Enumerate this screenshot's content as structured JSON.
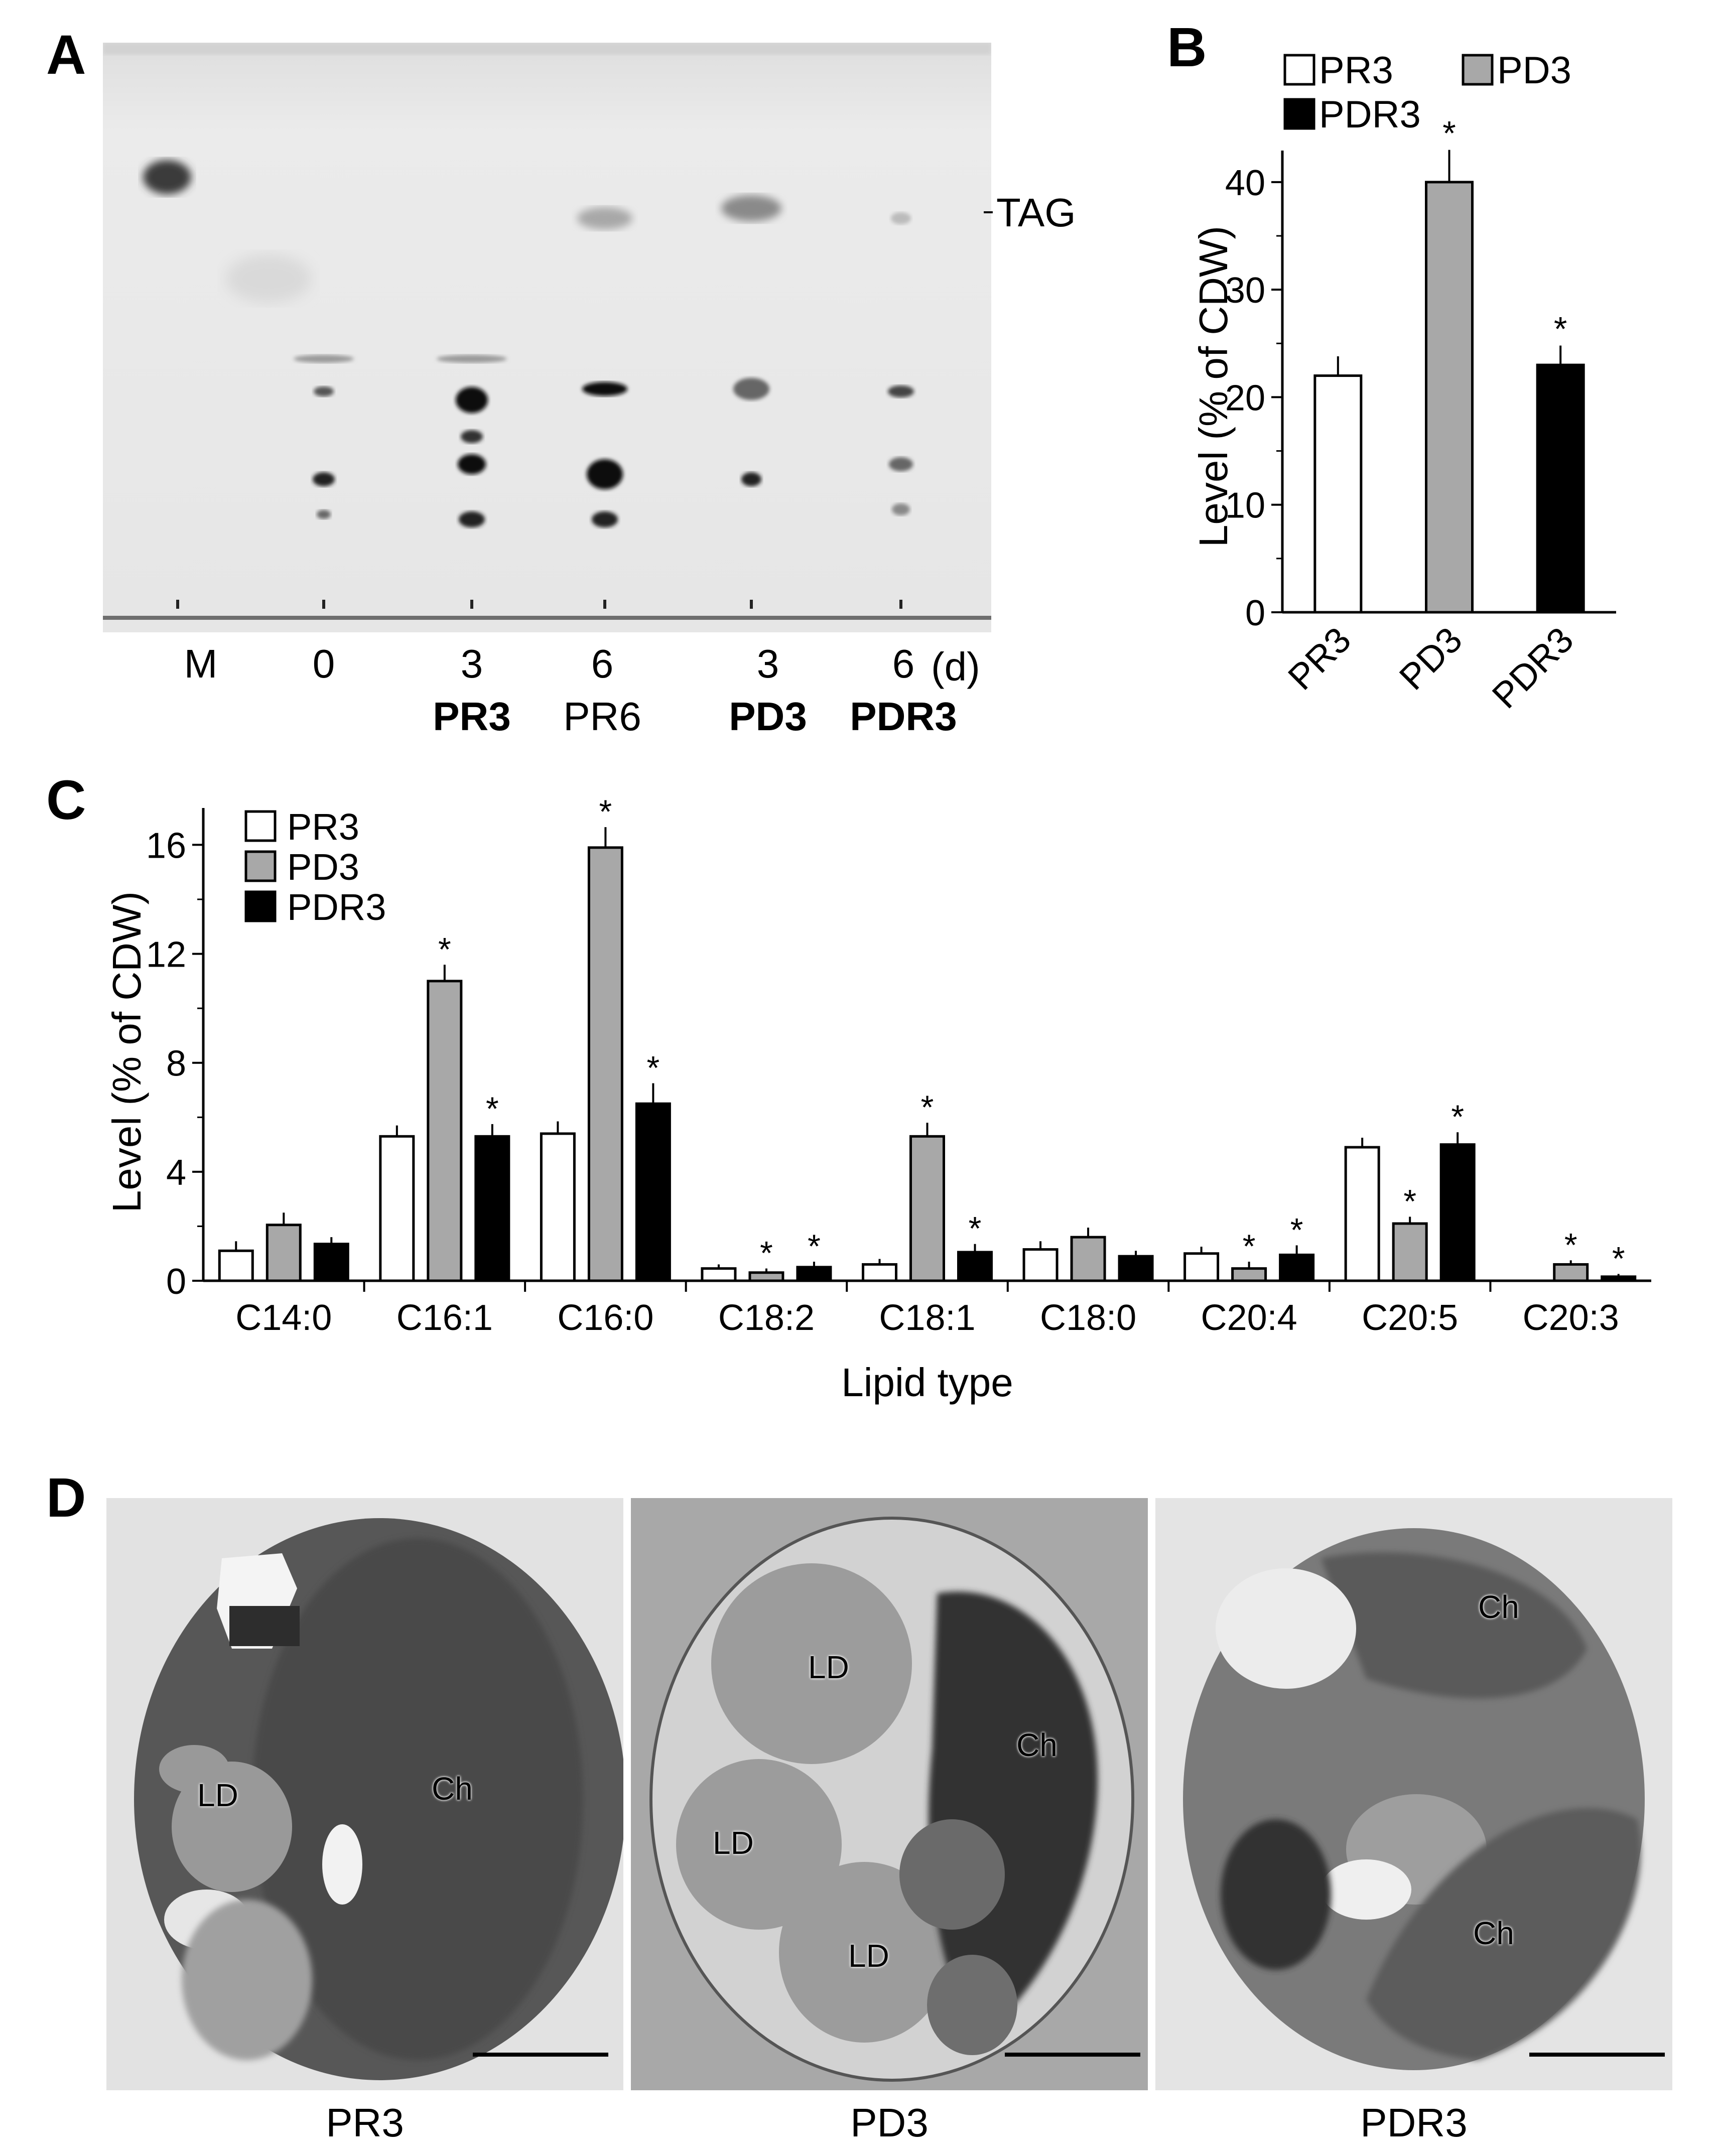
{
  "panels": {
    "A": {
      "letter": "A",
      "tag_label": "TAG",
      "day_unit": "(d)",
      "lanes": [
        {
          "day": "M",
          "name": ""
        },
        {
          "day": "0",
          "name": ""
        },
        {
          "day": "3",
          "name": "PR3",
          "bold": true
        },
        {
          "day": "6",
          "name": "PR6",
          "bold": false
        },
        {
          "day": "3",
          "name": "PD3",
          "bold": true
        },
        {
          "day": "6",
          "name": "PDR3",
          "bold": true
        }
      ]
    },
    "B": {
      "letter": "B"
    },
    "C": {
      "letter": "C"
    },
    "D": {
      "letter": "D",
      "images": [
        {
          "caption": "PR3",
          "labels": [
            "LD",
            "Ch"
          ]
        },
        {
          "caption": "PD3",
          "labels": [
            "LD",
            "LD",
            "LD",
            "Ch"
          ]
        },
        {
          "caption": "PDR3",
          "labels": [
            "Ch",
            "Ch"
          ]
        }
      ]
    }
  },
  "colors": {
    "PR3": "#ffffff",
    "PD3": "#a8a8a8",
    "PDR3": "#000000"
  },
  "chart_data": [
    {
      "panel": "B",
      "type": "bar",
      "categories": [
        "PR3",
        "PD3",
        "PDR3"
      ],
      "values": [
        22,
        40,
        23
      ],
      "errors": [
        1.8,
        3,
        1.8
      ],
      "significant": [
        false,
        true,
        true
      ],
      "legend": [
        "PR3",
        "PD3",
        "PDR3"
      ],
      "ylabel": "Level (% of CDW)",
      "yticks": [
        0,
        10,
        20,
        30,
        40
      ],
      "ylim": [
        0,
        42
      ],
      "legend_position": "top"
    },
    {
      "panel": "C",
      "type": "bar",
      "categories": [
        "C14:0",
        "C16:1",
        "C16:0",
        "C18:2",
        "C18:1",
        "C18:0",
        "C20:4",
        "C20:5",
        "C20:3"
      ],
      "series": [
        {
          "name": "PR3",
          "values": [
            1.1,
            5.3,
            5.4,
            0.45,
            0.6,
            1.15,
            1.0,
            4.9,
            0
          ],
          "errors": [
            0.35,
            0.4,
            0.45,
            0.15,
            0.2,
            0.3,
            0.25,
            0.35,
            0
          ],
          "significant": [
            false,
            false,
            false,
            false,
            false,
            false,
            false,
            false,
            false
          ]
        },
        {
          "name": "PD3",
          "values": [
            2.05,
            11.0,
            15.9,
            0.3,
            5.3,
            1.6,
            0.45,
            2.1,
            0.6
          ],
          "errors": [
            0.45,
            0.6,
            0.75,
            0.15,
            0.5,
            0.35,
            0.25,
            0.25,
            0.15
          ],
          "significant": [
            false,
            true,
            true,
            true,
            true,
            false,
            true,
            true,
            true
          ]
        },
        {
          "name": "PDR3",
          "values": [
            1.35,
            5.3,
            6.5,
            0.5,
            1.05,
            0.9,
            0.95,
            5.0,
            0.15
          ],
          "errors": [
            0.25,
            0.45,
            0.75,
            0.2,
            0.3,
            0.2,
            0.35,
            0.45,
            0.1
          ],
          "significant": [
            false,
            true,
            true,
            true,
            true,
            false,
            true,
            true,
            true
          ]
        }
      ],
      "xlabel": "Lipid type",
      "ylabel": "Level (% of CDW)",
      "yticks": [
        0,
        4,
        8,
        12,
        16
      ],
      "ylim": [
        0,
        16.8
      ],
      "legend_position": "top-left"
    }
  ]
}
